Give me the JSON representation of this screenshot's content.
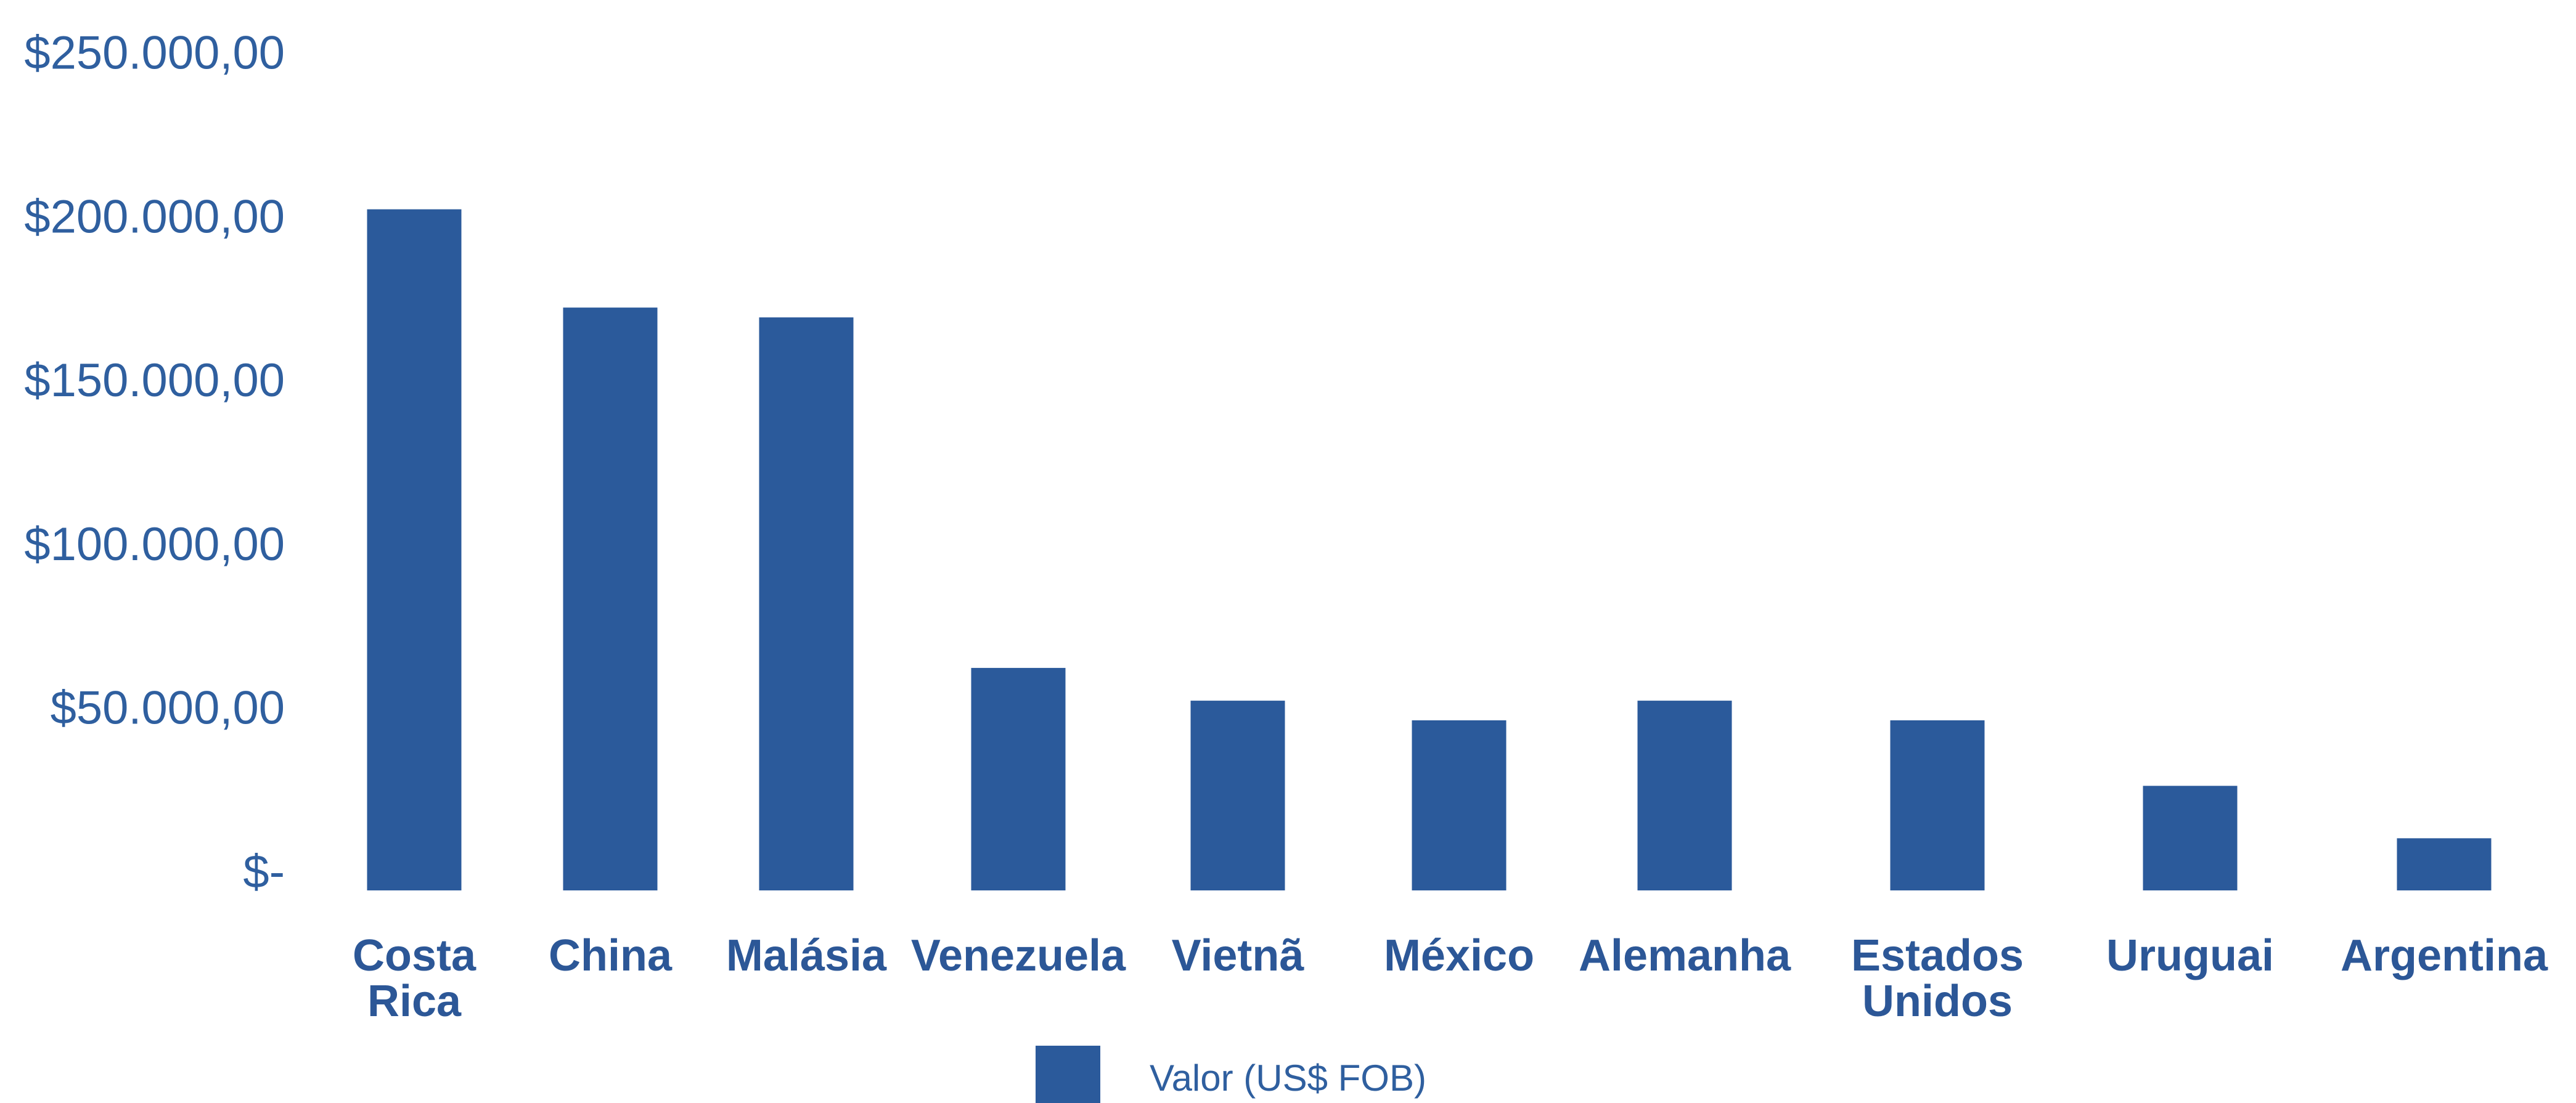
{
  "chart_data": {
    "type": "bar",
    "categories": [
      [
        "Costa",
        "Rica"
      ],
      [
        "China"
      ],
      [
        "Malásia"
      ],
      [
        "Venezuela"
      ],
      [
        "Vietnã"
      ],
      [
        "México"
      ],
      [
        "Alemanha"
      ],
      [
        "Estados",
        "Unidos"
      ],
      [
        "Uruguai"
      ],
      [
        "Argentina"
      ]
    ],
    "series": [
      {
        "name": "Valor (US$ FOB)",
        "values": [
          202000,
          172000,
          169000,
          62000,
          52000,
          46000,
          52000,
          46000,
          26000,
          10000
        ]
      }
    ],
    "ylim": [
      -11000,
      261000
    ],
    "yticks": [
      {
        "value": 0,
        "label": "$-"
      },
      {
        "value": 50000,
        "label": "$50.000,00"
      },
      {
        "value": 100000,
        "label": "$100.000,00"
      },
      {
        "value": 150000,
        "label": "$150.000,00"
      },
      {
        "value": 200000,
        "label": "$200.000,00"
      },
      {
        "value": 250000,
        "label": "$250.000,00"
      }
    ],
    "grid": false,
    "legend_position": "bottom-center",
    "bar_color": "#2b5a9b",
    "label_color": "#2c5797",
    "tick_color": "#2f5f9f"
  }
}
